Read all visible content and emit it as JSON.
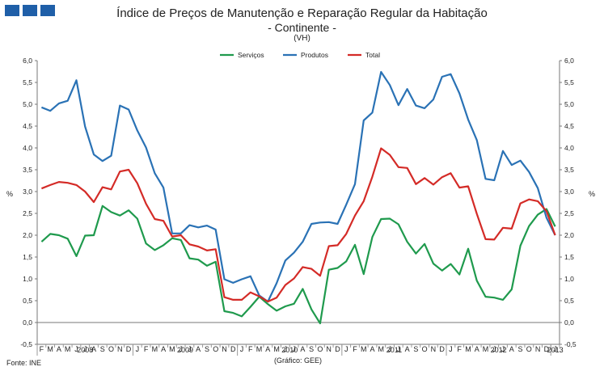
{
  "logo": {
    "name": "logo-icon",
    "color": "#1f5fa8"
  },
  "title": "Índice de Preços de Manutenção e Reparação Regular da Habitação",
  "subtitle": "- Continente -",
  "unit_note": "(VH)",
  "footer": {
    "source": "Fonte: INE",
    "credit": "(Gráfico: GEE)"
  },
  "chart_data": {
    "type": "line",
    "ylabel_left": "%",
    "ylabel_right": "%",
    "ylim": [
      -0.5,
      6.0
    ],
    "yticks": [
      "-0,5",
      "0,0",
      "0,5",
      "1,0",
      "1,5",
      "2,0",
      "2,5",
      "3,0",
      "3,5",
      "4,0",
      "4,5",
      "5,0",
      "5,5",
      "6,0"
    ],
    "grid": false,
    "legend_position": "top-center",
    "x_month_labels": [
      "F",
      "M",
      "A",
      "M",
      "J",
      "J",
      "A",
      "S",
      "O",
      "N",
      "D",
      "J",
      "F",
      "M",
      "A",
      "M",
      "J",
      "J",
      "A",
      "S",
      "O",
      "N",
      "D",
      "J",
      "F",
      "M",
      "A",
      "M",
      "J",
      "J",
      "A",
      "S",
      "O",
      "N",
      "D",
      "J",
      "F",
      "M",
      "A",
      "M",
      "J",
      "J",
      "A",
      "S",
      "O",
      "N",
      "D",
      "J",
      "F",
      "M",
      "A",
      "M",
      "J",
      "J",
      "A",
      "S",
      "O",
      "N",
      "D",
      "J"
    ],
    "years": [
      {
        "label": "2008",
        "start": 0,
        "end": 10
      },
      {
        "label": "2009",
        "start": 11,
        "end": 22
      },
      {
        "label": "2010",
        "start": 23,
        "end": 34
      },
      {
        "label": "2011",
        "start": 35,
        "end": 46
      },
      {
        "label": "2012",
        "start": 47,
        "end": 58
      },
      {
        "label": "2013",
        "start": 59,
        "end": 59
      }
    ],
    "series": [
      {
        "name": "Serviços",
        "color": "#1f9a4d",
        "values": [
          1.85,
          2.03,
          2.0,
          1.92,
          1.52,
          1.99,
          2.0,
          2.67,
          2.53,
          2.45,
          2.57,
          2.38,
          1.81,
          1.66,
          1.77,
          1.93,
          1.89,
          1.47,
          1.44,
          1.3,
          1.39,
          0.26,
          0.22,
          0.14,
          0.36,
          0.59,
          0.42,
          0.27,
          0.37,
          0.43,
          0.77,
          0.3,
          -0.02,
          1.21,
          1.25,
          1.4,
          1.78,
          1.11,
          1.96,
          2.37,
          2.38,
          2.25,
          1.85,
          1.58,
          1.8,
          1.35,
          1.19,
          1.34,
          1.1,
          1.69,
          0.96,
          0.59,
          0.57,
          0.52,
          0.76,
          1.76,
          2.21,
          2.47,
          2.6,
          2.2
        ]
      },
      {
        "name": "Produtos",
        "color": "#2a72b5",
        "values": [
          4.93,
          4.85,
          5.02,
          5.08,
          5.55,
          4.49,
          3.85,
          3.7,
          3.82,
          4.97,
          4.88,
          4.4,
          4.01,
          3.42,
          3.09,
          2.04,
          2.04,
          2.23,
          2.18,
          2.22,
          2.13,
          0.99,
          0.91,
          0.99,
          1.06,
          0.62,
          0.48,
          0.9,
          1.42,
          1.6,
          1.85,
          2.26,
          2.29,
          2.3,
          2.26,
          2.7,
          3.17,
          4.63,
          4.81,
          5.74,
          5.44,
          4.98,
          5.35,
          4.97,
          4.91,
          5.11,
          5.63,
          5.69,
          5.25,
          4.65,
          4.18,
          3.29,
          3.26,
          3.93,
          3.61,
          3.71,
          3.45,
          3.08,
          2.4,
          2.0
        ]
      },
      {
        "name": "Total",
        "color": "#d42b27",
        "values": [
          3.07,
          3.15,
          3.22,
          3.2,
          3.15,
          3.0,
          2.76,
          3.1,
          3.05,
          3.46,
          3.5,
          3.19,
          2.72,
          2.37,
          2.33,
          1.97,
          2.0,
          1.79,
          1.74,
          1.65,
          1.68,
          0.58,
          0.52,
          0.52,
          0.69,
          0.6,
          0.48,
          0.57,
          0.86,
          1.01,
          1.27,
          1.23,
          1.07,
          1.75,
          1.77,
          2.03,
          2.45,
          2.78,
          3.34,
          3.99,
          3.84,
          3.56,
          3.54,
          3.17,
          3.31,
          3.16,
          3.33,
          3.42,
          3.09,
          3.12,
          2.49,
          1.91,
          1.9,
          2.17,
          2.15,
          2.73,
          2.82,
          2.78,
          2.55,
          2.0
        ]
      }
    ]
  }
}
